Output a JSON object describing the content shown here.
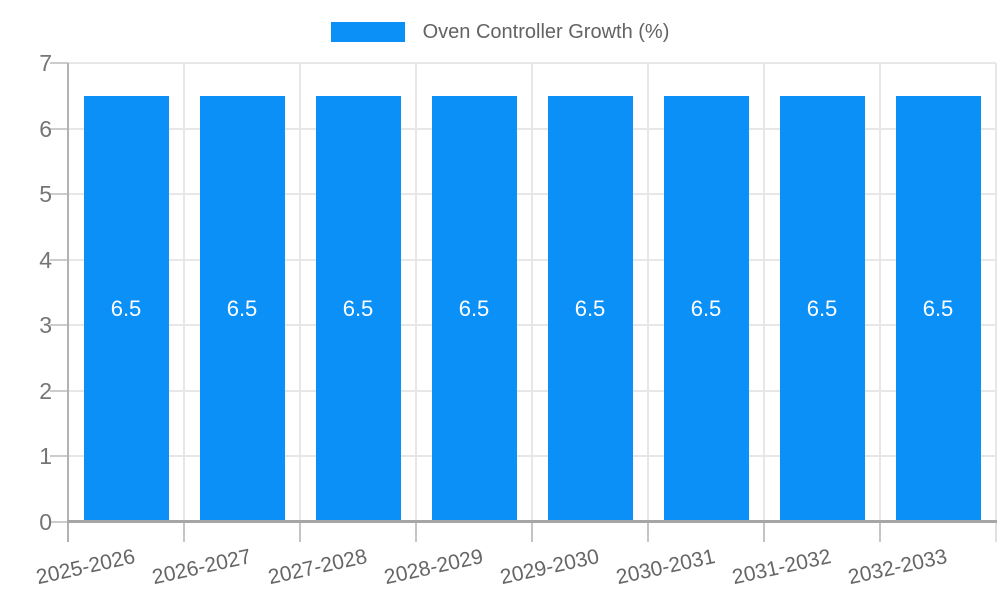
{
  "chart_data": {
    "type": "bar",
    "title": "Oven Controller Growth (%)",
    "categories": [
      "2025-2026",
      "2026-2027",
      "2027-2028",
      "2028-2029",
      "2029-2030",
      "2030-2031",
      "2031-2032",
      "2032-2033"
    ],
    "series": [
      {
        "name": "Oven Controller Growth (%)",
        "values": [
          6.5,
          6.5,
          6.5,
          6.5,
          6.5,
          6.5,
          6.5,
          6.5
        ]
      }
    ],
    "value_labels": [
      "6.5",
      "6.5",
      "6.5",
      "6.5",
      "6.5",
      "6.5",
      "6.5",
      "6.5"
    ],
    "xlabel": "",
    "ylabel": "",
    "ylim": [
      0,
      7
    ],
    "yticks": [
      0,
      1,
      2,
      3,
      4,
      5,
      6,
      7
    ],
    "grid": true,
    "legend_position": "top",
    "bar_label_position": "center-inside",
    "colors": {
      "bar": "#0b90f8",
      "value_label": "#ffffff",
      "y_axis_text": "#757575",
      "x_axis_text": "#666666",
      "legend_text": "#636363",
      "grid_line": "#e7e7e7",
      "tick_line": "#c4c4c4",
      "axis_line": "#b2b2b2",
      "baseline": "#a6a6a6",
      "background": "#ffffff"
    }
  }
}
